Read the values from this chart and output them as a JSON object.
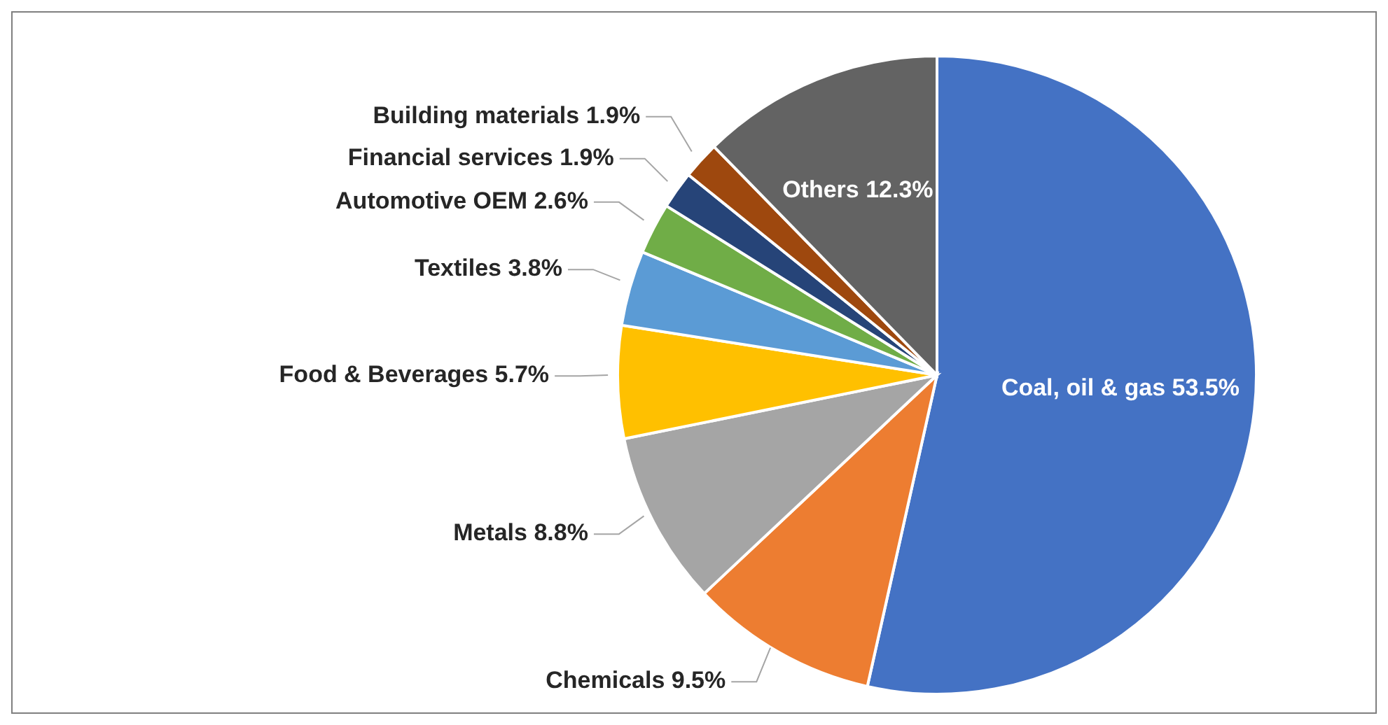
{
  "chart_data": {
    "type": "pie",
    "categories": [
      "Coal, oil & gas",
      "Chemicals",
      "Metals",
      "Food & Beverages",
      "Textiles",
      "Automotive OEM",
      "Financial services",
      "Building materials",
      "Others"
    ],
    "values": [
      53.5,
      9.5,
      8.8,
      5.7,
      3.8,
      2.6,
      1.9,
      1.9,
      12.3
    ],
    "colors": [
      "#4472c4",
      "#ed7d31",
      "#a5a5a5",
      "#ffc000",
      "#5b9bd5",
      "#70ad47",
      "#264478",
      "#9e480e",
      "#636363"
    ],
    "value_labels": [
      "53.5%",
      "9.5%",
      "8.8%",
      "5.7%",
      "3.8%",
      "2.6%",
      "1.9%",
      "1.9%",
      "12.3%"
    ]
  }
}
